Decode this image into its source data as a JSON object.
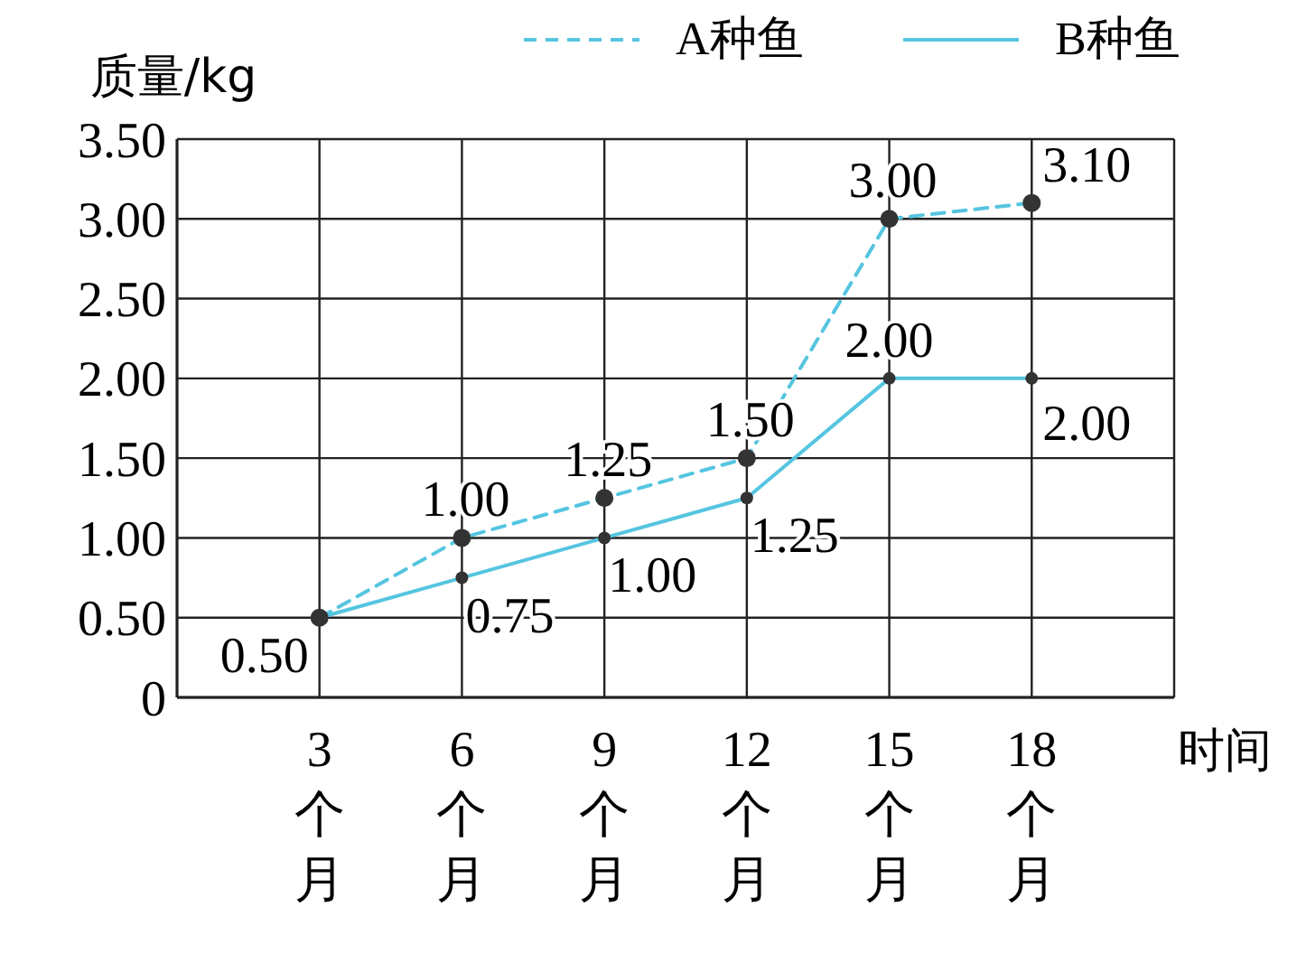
{
  "chart_data": {
    "type": "line",
    "xlabel": "时间",
    "ylabel": "质量/kg",
    "x": [
      3,
      6,
      9,
      12,
      15,
      18
    ],
    "xlim": [
      0,
      21
    ],
    "xticks": [
      {
        "value": 3,
        "label": "3个月"
      },
      {
        "value": 6,
        "label": "6个月"
      },
      {
        "value": 9,
        "label": "9个月"
      },
      {
        "value": 12,
        "label": "12个月"
      },
      {
        "value": 15,
        "label": "15个月"
      },
      {
        "value": 18,
        "label": "18个月"
      }
    ],
    "ylim": [
      0,
      3.5
    ],
    "yticks": [
      0,
      {
        "value": 0.5,
        "label": "0.50"
      },
      {
        "value": 1,
        "label": "1.00"
      },
      {
        "value": 1.5,
        "label": "1.50"
      },
      {
        "value": 2,
        "label": "2.00"
      },
      {
        "value": 2.5,
        "label": "2.50"
      },
      {
        "value": 3,
        "label": "3.00"
      },
      {
        "value": 3.5,
        "label": "3.50"
      }
    ],
    "series": [
      {
        "name": "A种鱼",
        "color": "#55c5e0",
        "line_style": "dashed",
        "values": [
          0.5,
          1,
          1.25,
          1.5,
          3,
          3.1
        ],
        "value_labels": [
          null,
          "1.00",
          "1.25",
          "1.50",
          "3.00",
          "3.10"
        ]
      },
      {
        "name": "B种鱼",
        "color": "#55c5e0",
        "line_style": "solid",
        "values": [
          0.5,
          0.75,
          1,
          1.25,
          2,
          2
        ],
        "value_labels": [
          "0.50",
          "0.75",
          "1.00",
          "1.25",
          "2.00",
          "2.00"
        ]
      }
    ],
    "grid": true,
    "legend": "top right",
    "marker": "circle"
  }
}
